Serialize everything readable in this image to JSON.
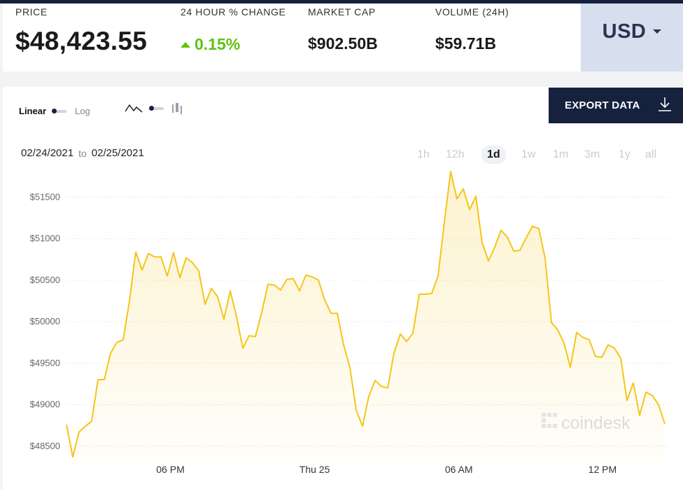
{
  "stats": {
    "price_label": "PRICE",
    "price_value": "$48,423.55",
    "change_label": "24 HOUR % CHANGE",
    "change_value": "0.15%",
    "mcap_label": "MARKET CAP",
    "mcap_value": "$902.50B",
    "volume_label": "VOLUME (24H)",
    "volume_value": "$59.71B"
  },
  "currency": {
    "label": "USD"
  },
  "controls": {
    "scale_linear": "Linear",
    "scale_log": "Log",
    "scale_selected": "Linear",
    "export_label": "EXPORT DATA",
    "range_start": "02/24/2021",
    "range_to": "to",
    "range_end": "02/25/2021",
    "periods": [
      "1h",
      "12h",
      "1d",
      "1w",
      "1m",
      "3m",
      "1y",
      "all"
    ],
    "selected_period": "1d"
  },
  "colors": {
    "line": "#f5c518",
    "positive": "#5cc30f",
    "dark": "#16213e",
    "currency_bg": "#d7deee"
  },
  "watermark": "coindesk",
  "chart_data": {
    "type": "area",
    "title": "",
    "xlabel": "",
    "ylabel": "",
    "ylim": [
      48270,
      51900
    ],
    "yticks": [
      48500,
      49000,
      49500,
      50000,
      50500,
      51000,
      51500
    ],
    "ytick_labels": [
      "$48500",
      "$49000",
      "$49500",
      "$50000",
      "$50500",
      "$51000",
      "$51500"
    ],
    "x_ticks": [
      {
        "label": "06 PM",
        "index": 16.5
      },
      {
        "label": "Thu 25",
        "index": 39.4
      },
      {
        "label": "06 AM",
        "index": 62.3
      },
      {
        "label": "12 PM",
        "index": 85.1
      }
    ],
    "grid": true,
    "legend": "none",
    "series": [
      {
        "values": [
          48760,
          48370,
          48670,
          48740,
          48800,
          49300,
          49300,
          49620,
          49750,
          49780,
          50250,
          50840,
          50620,
          50820,
          50780,
          50780,
          50550,
          50830,
          50530,
          50770,
          50710,
          50610,
          50210,
          50400,
          50300,
          50030,
          50370,
          50060,
          49680,
          49830,
          49820,
          50110,
          50450,
          50440,
          50380,
          50510,
          50520,
          50370,
          50560,
          50540,
          50500,
          50260,
          50100,
          50100,
          49720,
          49450,
          48930,
          48740,
          49100,
          49290,
          49220,
          49200,
          49620,
          49850,
          49760,
          49860,
          50330,
          50330,
          50340,
          50550,
          51200,
          51810,
          51480,
          51600,
          51350,
          51510,
          50950,
          50730,
          50900,
          51100,
          51020,
          50850,
          50860,
          51010,
          51150,
          51120,
          50760,
          49990,
          49900,
          49740,
          49450,
          49870,
          49810,
          49780,
          49580,
          49570,
          49720,
          49680,
          49560,
          49050,
          49260,
          48870,
          49150,
          49110,
          49000,
          48770
        ]
      }
    ]
  }
}
